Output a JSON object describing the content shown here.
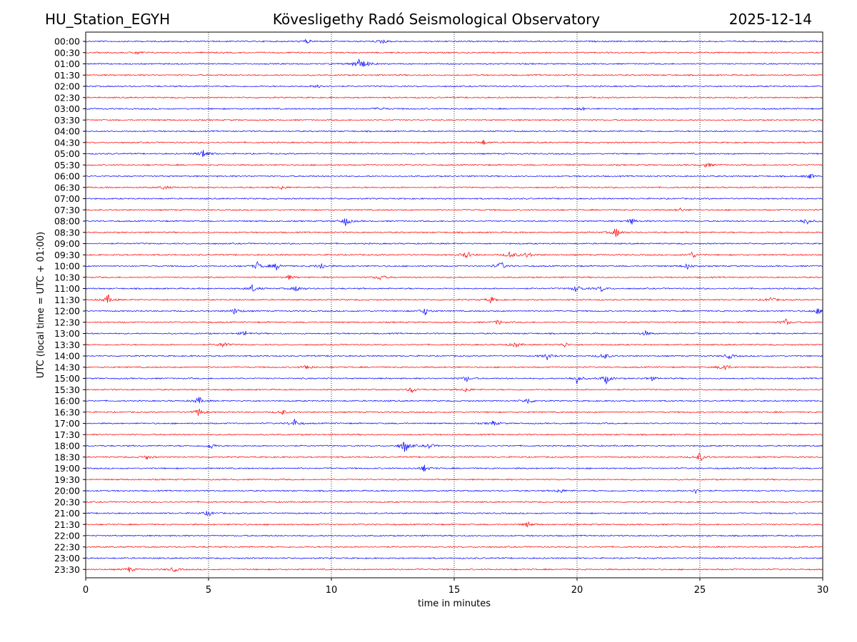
{
  "header": {
    "station": "HU_Station_EGYH",
    "observatory": "Kövesligethy Radó Seismological Observatory",
    "date": "2025-12-14"
  },
  "chart_data": {
    "type": "line",
    "title": "Kövesligethy Radó Seismological Observatory",
    "xlabel": "time in minutes",
    "ylabel": "UTC (local time = UTC + 01:00)",
    "xlim": [
      0,
      30
    ],
    "xticks": [
      0,
      5,
      10,
      15,
      20,
      25,
      30
    ],
    "grid": "vertical dotted lines at x ticks",
    "colors": {
      "even_rows": "#0000ff",
      "odd_rows": "#ff0000"
    },
    "rows": [
      {
        "label": "00:00",
        "events": [
          {
            "t": 9.0,
            "a": 0.25
          },
          {
            "t": 12.1,
            "a": 0.3
          }
        ]
      },
      {
        "label": "00:30",
        "events": [
          {
            "t": 2.1,
            "a": 0.2
          }
        ]
      },
      {
        "label": "01:00",
        "events": [
          {
            "t": 11.05,
            "a": 0.8
          },
          {
            "t": 11.4,
            "a": 0.4
          }
        ]
      },
      {
        "label": "01:30",
        "events": []
      },
      {
        "label": "02:00",
        "events": [
          {
            "t": 9.5,
            "a": 0.3
          }
        ]
      },
      {
        "label": "02:30",
        "events": []
      },
      {
        "label": "03:00",
        "events": [
          {
            "t": 12.0,
            "a": 0.25
          },
          {
            "t": 20.2,
            "a": 0.2
          }
        ]
      },
      {
        "label": "03:30",
        "events": []
      },
      {
        "label": "04:00",
        "events": []
      },
      {
        "label": "04:30",
        "events": [
          {
            "t": 16.2,
            "a": 0.3
          }
        ]
      },
      {
        "label": "05:00",
        "events": [
          {
            "t": 4.8,
            "a": 0.6
          }
        ]
      },
      {
        "label": "05:30",
        "events": [
          {
            "t": 25.3,
            "a": 0.35
          }
        ]
      },
      {
        "label": "06:00",
        "events": [
          {
            "t": 29.5,
            "a": 0.3
          }
        ]
      },
      {
        "label": "06:30",
        "events": [
          {
            "t": 8.0,
            "a": 0.25
          },
          {
            "t": 3.2,
            "a": 0.25
          }
        ]
      },
      {
        "label": "07:00",
        "events": []
      },
      {
        "label": "07:30",
        "events": [
          {
            "t": 24.2,
            "a": 0.2
          }
        ]
      },
      {
        "label": "08:00",
        "events": [
          {
            "t": 10.6,
            "a": 0.55
          },
          {
            "t": 22.2,
            "a": 0.4
          },
          {
            "t": 29.3,
            "a": 0.5
          }
        ]
      },
      {
        "label": "08:30",
        "events": [
          {
            "t": 21.6,
            "a": 0.6
          }
        ]
      },
      {
        "label": "09:00",
        "events": []
      },
      {
        "label": "09:30",
        "events": [
          {
            "t": 15.5,
            "a": 0.5
          },
          {
            "t": 17.3,
            "a": 0.55
          },
          {
            "t": 18.0,
            "a": 0.4
          },
          {
            "t": 24.7,
            "a": 0.4
          }
        ]
      },
      {
        "label": "10:00",
        "events": [
          {
            "t": 7.0,
            "a": 0.5
          },
          {
            "t": 7.8,
            "a": 0.45
          },
          {
            "t": 9.6,
            "a": 0.45
          },
          {
            "t": 16.9,
            "a": 0.55
          },
          {
            "t": 24.5,
            "a": 0.35
          }
        ]
      },
      {
        "label": "10:30",
        "events": [
          {
            "t": 12.0,
            "a": 0.4
          },
          {
            "t": 8.3,
            "a": 0.25
          }
        ]
      },
      {
        "label": "11:00",
        "events": [
          {
            "t": 6.8,
            "a": 0.45
          },
          {
            "t": 8.6,
            "a": 0.4
          },
          {
            "t": 20.0,
            "a": 0.5
          },
          {
            "t": 21.0,
            "a": 0.35
          }
        ]
      },
      {
        "label": "11:30",
        "events": [
          {
            "t": 0.9,
            "a": 0.55
          },
          {
            "t": 16.5,
            "a": 0.35
          },
          {
            "t": 27.9,
            "a": 0.35
          }
        ]
      },
      {
        "label": "12:00",
        "events": [
          {
            "t": 6.1,
            "a": 0.45
          },
          {
            "t": 13.8,
            "a": 0.45
          },
          {
            "t": 29.8,
            "a": 0.35
          }
        ]
      },
      {
        "label": "12:30",
        "events": [
          {
            "t": 28.5,
            "a": 0.4
          },
          {
            "t": 16.8,
            "a": 0.3
          }
        ]
      },
      {
        "label": "13:00",
        "events": [
          {
            "t": 6.5,
            "a": 0.3
          },
          {
            "t": 22.8,
            "a": 0.3
          }
        ]
      },
      {
        "label": "13:30",
        "events": [
          {
            "t": 5.6,
            "a": 0.4
          },
          {
            "t": 17.5,
            "a": 0.35
          },
          {
            "t": 19.5,
            "a": 0.3
          }
        ]
      },
      {
        "label": "14:00",
        "events": [
          {
            "t": 18.8,
            "a": 0.45
          },
          {
            "t": 21.1,
            "a": 0.45
          },
          {
            "t": 26.2,
            "a": 0.35
          }
        ]
      },
      {
        "label": "14:30",
        "events": [
          {
            "t": 9.0,
            "a": 0.35
          },
          {
            "t": 26.0,
            "a": 0.55
          }
        ]
      },
      {
        "label": "15:00",
        "events": [
          {
            "t": 15.5,
            "a": 0.35
          },
          {
            "t": 20.0,
            "a": 0.55
          },
          {
            "t": 21.2,
            "a": 0.6
          },
          {
            "t": 23.0,
            "a": 0.3
          }
        ]
      },
      {
        "label": "15:30",
        "events": [
          {
            "t": 13.3,
            "a": 0.4
          },
          {
            "t": 15.5,
            "a": 0.3
          }
        ]
      },
      {
        "label": "16:00",
        "events": [
          {
            "t": 4.6,
            "a": 0.45
          },
          {
            "t": 18.0,
            "a": 0.4
          }
        ]
      },
      {
        "label": "16:30",
        "events": [
          {
            "t": 4.6,
            "a": 0.5
          },
          {
            "t": 8.0,
            "a": 0.35
          }
        ]
      },
      {
        "label": "17:00",
        "events": [
          {
            "t": 8.5,
            "a": 0.45
          },
          {
            "t": 16.6,
            "a": 0.3
          }
        ]
      },
      {
        "label": "17:30",
        "events": []
      },
      {
        "label": "18:00",
        "events": [
          {
            "t": 13.0,
            "a": 0.85
          },
          {
            "t": 14.0,
            "a": 0.35
          },
          {
            "t": 5.1,
            "a": 0.4
          }
        ]
      },
      {
        "label": "18:30",
        "events": [
          {
            "t": 25.0,
            "a": 0.55
          },
          {
            "t": 2.5,
            "a": 0.25
          }
        ]
      },
      {
        "label": "19:00",
        "events": [
          {
            "t": 13.8,
            "a": 0.45
          }
        ]
      },
      {
        "label": "19:30",
        "events": []
      },
      {
        "label": "20:00",
        "events": [
          {
            "t": 19.3,
            "a": 0.3
          },
          {
            "t": 24.8,
            "a": 0.3
          }
        ]
      },
      {
        "label": "20:30",
        "events": []
      },
      {
        "label": "21:00",
        "events": [
          {
            "t": 5.0,
            "a": 0.35
          }
        ]
      },
      {
        "label": "21:30",
        "events": [
          {
            "t": 18.0,
            "a": 0.3
          }
        ]
      },
      {
        "label": "22:00",
        "events": []
      },
      {
        "label": "22:30",
        "events": []
      },
      {
        "label": "23:00",
        "events": []
      },
      {
        "label": "23:30",
        "events": [
          {
            "t": 1.8,
            "a": 0.35
          },
          {
            "t": 3.6,
            "a": 0.3
          }
        ]
      }
    ]
  }
}
